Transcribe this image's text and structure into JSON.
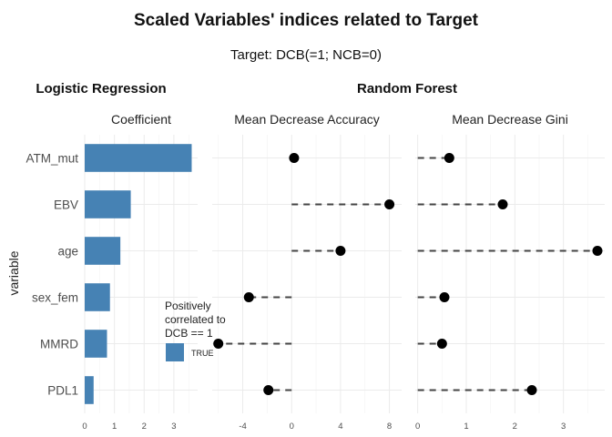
{
  "title": "Scaled Variables' indices related to Target",
  "subtitle": "Target: DCB(=1; NCB=0)",
  "sections": {
    "left": "Logistic Regression",
    "right": "Random Forest"
  },
  "y_axis_title": "variable",
  "legend": {
    "title_lines": [
      "Positively",
      "correlated to",
      "DCB == 1"
    ],
    "entry": "TRUE",
    "color": "#4682B4"
  },
  "colors": {
    "bar": "#4682B4",
    "dot": "#000000",
    "segment": "#444444"
  },
  "chart_data": [
    {
      "type": "bar",
      "facet": "Coefficient",
      "categories": [
        "ATM_mut",
        "EBV",
        "age",
        "sex_fem",
        "MMRD",
        "PDL1"
      ],
      "values": [
        3.6,
        1.55,
        1.2,
        0.85,
        0.75,
        0.3
      ],
      "xlim": [
        0,
        3.8
      ],
      "xticks": [
        "0",
        "1",
        "2",
        "3"
      ],
      "orientation": "horizontal",
      "grid": true
    },
    {
      "type": "scatter",
      "facet": "Mean Decrease Accuracy",
      "categories": [
        "ATM_mut",
        "EBV",
        "age",
        "sex_fem",
        "MMRD",
        "PDL1"
      ],
      "values": [
        0.2,
        8.0,
        4.0,
        -3.5,
        -6.0,
        -1.9
      ],
      "baseline": 0,
      "xlim": [
        -6.5,
        9.0
      ],
      "xticks": [
        "-4",
        "0",
        "4",
        "8"
      ],
      "style": "lollipop-dashed",
      "grid": true
    },
    {
      "type": "scatter",
      "facet": "Mean Decrease Gini",
      "categories": [
        "ATM_mut",
        "EBV",
        "age",
        "sex_fem",
        "MMRD",
        "PDL1"
      ],
      "values": [
        0.65,
        1.75,
        3.7,
        0.55,
        0.5,
        2.35
      ],
      "baseline": 0,
      "xlim": [
        -0.05,
        3.85
      ],
      "xticks": [
        "0",
        "1",
        "2",
        "3"
      ],
      "style": "lollipop-dashed",
      "grid": true
    }
  ]
}
